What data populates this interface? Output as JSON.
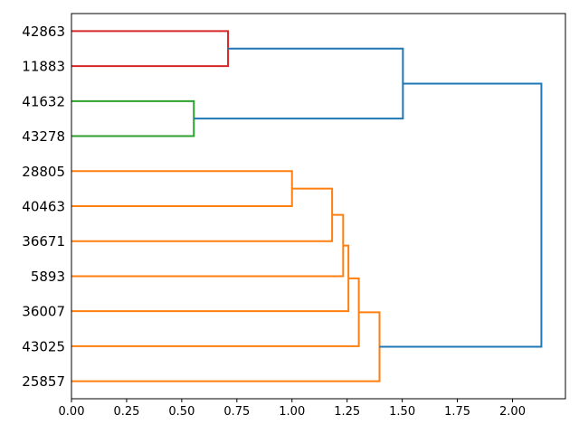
{
  "figure": {
    "background": "#ffffff"
  },
  "chart_data": {
    "type": "dendrogram",
    "orientation": "right",
    "title": "",
    "xlabel": "",
    "ylabel": "",
    "grid": false,
    "legend": null,
    "leaf_labels": [
      "42863",
      "11883",
      "41632",
      "43278",
      "28805",
      "40463",
      "36671",
      "5893",
      "36007",
      "43025",
      "25857"
    ],
    "x_ticks": {
      "values": [
        0.0,
        0.25,
        0.5,
        0.75,
        1.0,
        1.25,
        1.5,
        1.75,
        2.0
      ],
      "labels": [
        "0.00",
        "0.25",
        "0.50",
        "0.75",
        "1.00",
        "1.25",
        "1.50",
        "1.75",
        "2.00"
      ]
    },
    "xlim": [
      0.0,
      2.24
    ],
    "colors": {
      "blue": "#1f77b4",
      "orange": "#ff7f0e",
      "green": "#2ca02c",
      "red": "#d62728",
      "spine": "#000000"
    },
    "merges": [
      {
        "id": "M0",
        "children": [
          "L0",
          "L1"
        ],
        "height": 0.71,
        "color": "red"
      },
      {
        "id": "M1",
        "children": [
          "L2",
          "L3"
        ],
        "height": 0.555,
        "color": "green"
      },
      {
        "id": "M2",
        "children": [
          "M0",
          "M1"
        ],
        "height": 1.503,
        "color": "blue"
      },
      {
        "id": "M3",
        "children": [
          "L4",
          "L5"
        ],
        "height": 1.0,
        "color": "orange"
      },
      {
        "id": "M4",
        "children": [
          "M3",
          "L6"
        ],
        "height": 1.182,
        "color": "orange"
      },
      {
        "id": "M5",
        "children": [
          "M4",
          "L7"
        ],
        "height": 1.232,
        "color": "orange"
      },
      {
        "id": "M6",
        "children": [
          "M5",
          "L8"
        ],
        "height": 1.256,
        "color": "orange"
      },
      {
        "id": "M7",
        "children": [
          "M6",
          "L9"
        ],
        "height": 1.303,
        "color": "orange"
      },
      {
        "id": "M8",
        "children": [
          "M7",
          "L10"
        ],
        "height": 1.397,
        "color": "orange"
      },
      {
        "id": "M9",
        "children": [
          "M2",
          "M8"
        ],
        "height": 2.131,
        "color": "blue"
      }
    ]
  }
}
